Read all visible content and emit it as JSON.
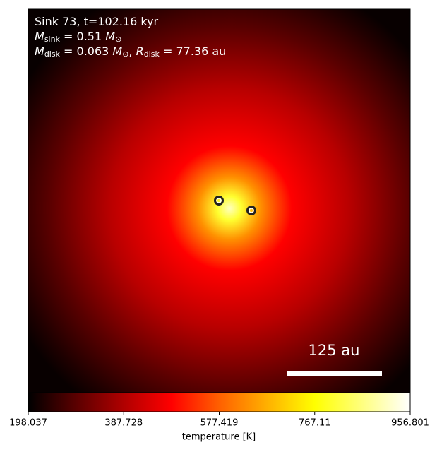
{
  "chart_data": {
    "type": "image",
    "annotations": [
      [
        {
          "text": "Sink 73, t=102.16 kyr"
        }
      ],
      [
        {
          "italic": "M"
        },
        {
          "sub": "sink"
        },
        {
          "text": " = 0.51 "
        },
        {
          "italic": "M"
        },
        {
          "sub": "⊙"
        }
      ],
      [
        {
          "italic": "M"
        },
        {
          "sub": "disk"
        },
        {
          "text": " = 0.063 "
        },
        {
          "italic": "M"
        },
        {
          "sub": "⊙"
        },
        {
          "text": ", "
        },
        {
          "italic": "R"
        },
        {
          "sub": "disk"
        },
        {
          "text": " = 77.36 au"
        }
      ]
    ],
    "scale_bar": "125 au",
    "colorbar": {
      "label": "temperature [K]",
      "lim": [
        198.037,
        956.801
      ],
      "ticks": [
        198.037,
        387.728,
        577.419,
        767.11,
        {
          "value": 956.801,
          "label": "956.801"
        }
      ],
      "colors": [
        "#000000",
        "#5a0000",
        "#b00000",
        "#ff0000",
        "#ff6000",
        "#ffb000",
        "#ffff00",
        "#ffff80",
        "#ffffff"
      ]
    }
  }
}
